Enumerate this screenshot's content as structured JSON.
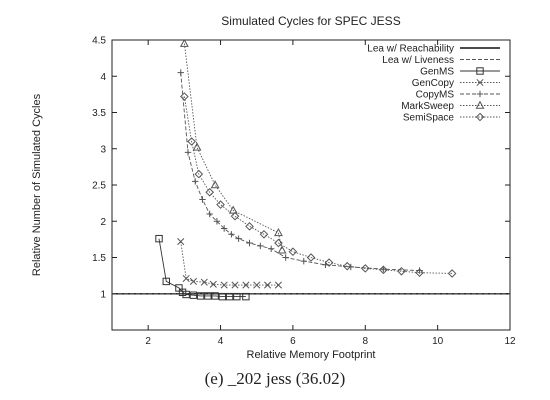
{
  "chart_data": {
    "type": "line",
    "title": "Simulated Cycles for SPEC JESS",
    "xlabel": "Relative Memory Footprint",
    "ylabel": "Relative Number of Simulated Cycles",
    "xlim": [
      1,
      12
    ],
    "ylim": [
      0.5,
      4.5
    ],
    "xticks": [
      2,
      4,
      6,
      8,
      10,
      12
    ],
    "yticks": [
      1,
      1.5,
      2,
      2.5,
      3,
      3.5,
      4,
      4.5
    ],
    "xtick_labels": [
      "2",
      "4",
      "6",
      "8",
      "10",
      "12"
    ],
    "ytick_labels": [
      "1",
      "1.5",
      "2",
      "2.5",
      "3",
      "3.5",
      "4",
      "4.5"
    ],
    "grid": false,
    "legend_position": "top-right",
    "caption": "(e) _202 jess (36.02)",
    "series": [
      {
        "name": "Lea w/ Reachability",
        "marker": "none",
        "dash": "solid",
        "color": "#111111",
        "x": [
          1,
          12
        ],
        "y": [
          1.0,
          1.0
        ]
      },
      {
        "name": "Lea w/ Liveness",
        "marker": "none",
        "dash": "dashed",
        "color": "#555555",
        "x": [
          1,
          12
        ],
        "y": [
          1.0,
          1.0
        ]
      },
      {
        "name": "GenMS",
        "marker": "square",
        "dash": "solid",
        "color": "#333333",
        "x": [
          2.3,
          2.5,
          2.85,
          2.95,
          3.05,
          3.25,
          3.45,
          3.65,
          3.85,
          4.05,
          4.25,
          4.45,
          4.7
        ],
        "y": [
          1.76,
          1.17,
          1.08,
          1.02,
          0.99,
          0.98,
          0.97,
          0.97,
          0.97,
          0.96,
          0.96,
          0.96,
          0.96
        ]
      },
      {
        "name": "GenCopy",
        "marker": "x",
        "dash": "dotted",
        "color": "#555555",
        "x": [
          2.9,
          3.05,
          3.25,
          3.55,
          3.8,
          4.1,
          4.4,
          4.7,
          5.0,
          5.3,
          5.6
        ],
        "y": [
          1.72,
          1.21,
          1.17,
          1.16,
          1.13,
          1.12,
          1.12,
          1.12,
          1.12,
          1.12,
          1.12
        ]
      },
      {
        "name": "CopyMS",
        "marker": "plus",
        "dash": "dashed",
        "color": "#555555",
        "x": [
          2.9,
          3.1,
          3.3,
          3.5,
          3.7,
          3.9,
          4.1,
          4.3,
          4.5,
          4.8,
          5.1,
          5.4,
          5.8,
          6.3,
          6.9,
          7.6,
          8.5,
          9.5
        ],
        "y": [
          4.05,
          2.95,
          2.55,
          2.3,
          2.1,
          2.0,
          1.9,
          1.82,
          1.76,
          1.7,
          1.66,
          1.62,
          1.5,
          1.45,
          1.4,
          1.37,
          1.34,
          1.32
        ]
      },
      {
        "name": "MarkSweep",
        "marker": "triangle",
        "dash": "dotted",
        "color": "#555555",
        "x": [
          3.0,
          3.35,
          3.85,
          4.35,
          5.6,
          5.7
        ],
        "y": [
          4.45,
          3.02,
          2.5,
          2.15,
          1.84,
          1.6
        ]
      },
      {
        "name": "SemiSpace",
        "marker": "diamond",
        "dash": "dotted",
        "color": "#555555",
        "x": [
          3.0,
          3.2,
          3.4,
          3.7,
          4.0,
          4.4,
          4.8,
          5.2,
          5.6,
          6.0,
          6.5,
          7.0,
          7.5,
          8.0,
          8.5,
          9.0,
          9.5,
          10.4
        ],
        "y": [
          3.72,
          3.1,
          2.65,
          2.4,
          2.23,
          2.07,
          1.93,
          1.82,
          1.7,
          1.58,
          1.5,
          1.43,
          1.38,
          1.35,
          1.33,
          1.31,
          1.29,
          1.28
        ]
      }
    ]
  }
}
